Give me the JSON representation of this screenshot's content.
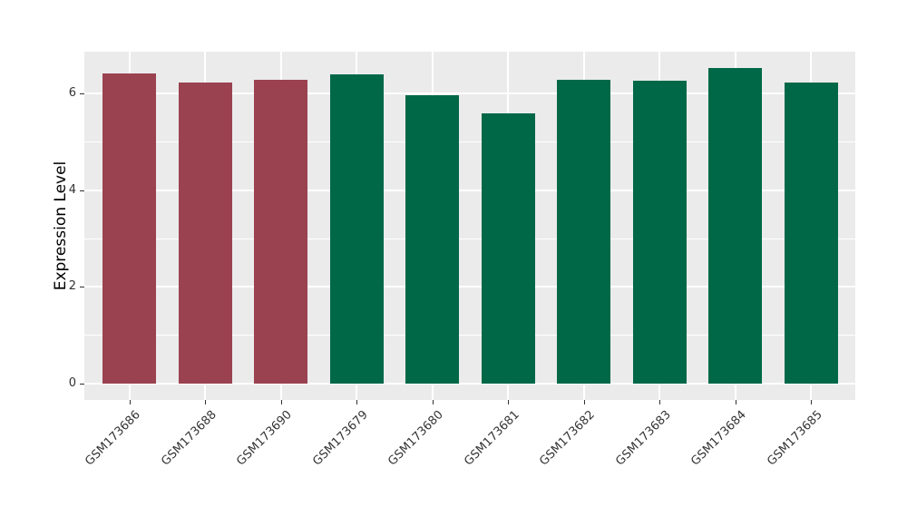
{
  "chart_data": {
    "type": "bar",
    "title": "",
    "ylabel": "Expression Level",
    "xlabel": "",
    "categories": [
      "GSM173686",
      "GSM173688",
      "GSM173690",
      "GSM173679",
      "GSM173680",
      "GSM173681",
      "GSM173682",
      "GSM173683",
      "GSM173684",
      "GSM173685"
    ],
    "values": [
      6.42,
      6.22,
      6.29,
      6.4,
      5.97,
      5.6,
      6.29,
      6.26,
      6.53,
      6.22
    ],
    "bar_colors": [
      "#9A4250",
      "#9A4250",
      "#9A4250",
      "#006847",
      "#006847",
      "#006847",
      "#006847",
      "#006847",
      "#006847",
      "#006847"
    ],
    "group_colors": {
      "left_group": "#9A4250",
      "right_group": "#006847"
    },
    "yticks": [
      0,
      2,
      4,
      6
    ],
    "minor_yticks": [
      1,
      3,
      5
    ],
    "ylim": [
      0,
      6.87
    ],
    "legend_position": "none",
    "grid": "on",
    "panel_background": "#EBEBEB",
    "grid_color": "#FFFFFF",
    "x_label_rotation_deg": 45
  }
}
